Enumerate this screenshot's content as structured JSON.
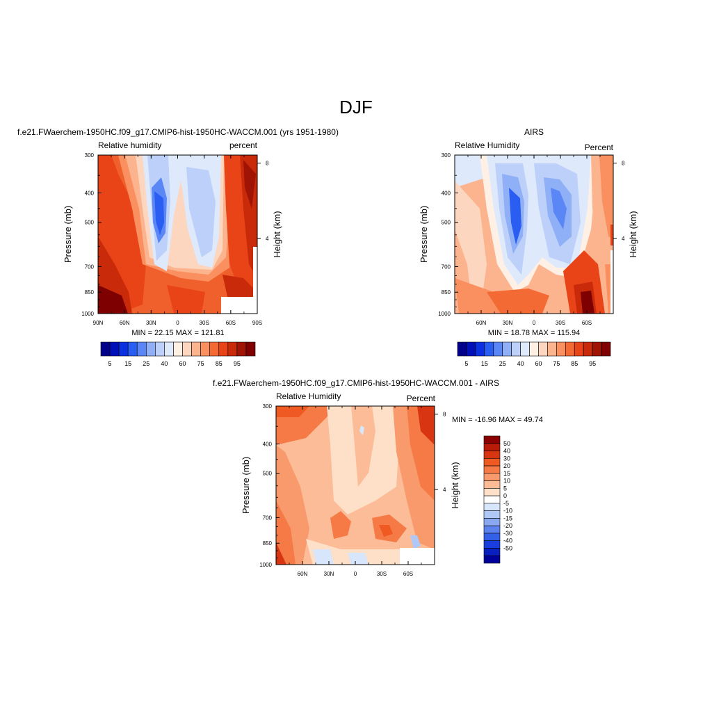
{
  "figure": {
    "title": "DJF"
  },
  "chart_data": [
    {
      "type": "heatmap",
      "title": "f.e21.FWaerchem-1950HC.f09_g17.CMIP6-hist-1950HC-WACCM.001 (yrs 1951-1980)",
      "left_label": "Relative humidity",
      "right_label": "percent",
      "ylabel": "Pressure (mb)",
      "y2label": "Height (km)",
      "y_ticks": [
        "300",
        "400",
        "500",
        "700",
        "850",
        "1000"
      ],
      "y2_ticks": [
        "8",
        "4"
      ],
      "x_ticks": [
        "90N",
        "60N",
        "30N",
        "0",
        "30S",
        "60S",
        "90S"
      ],
      "stats": "MIN =  22.15  MAX = 121.81",
      "colorbar_labels": [
        "5",
        "15",
        "25",
        "40",
        "60",
        "75",
        "85",
        "95"
      ],
      "colors": [
        "#00008b",
        "#0010b8",
        "#0a30e0",
        "#2a5ef2",
        "#5a87f5",
        "#8fb0f7",
        "#bcd0f9",
        "#deeafc",
        "#fff0e6",
        "#fdd6bf",
        "#fcb48f",
        "#fa905f",
        "#f46a35",
        "#e84418",
        "#c82a0a",
        "#a01405",
        "#7f0000"
      ],
      "ylim": [
        1000,
        300
      ],
      "x_range": [
        "90N",
        "90S"
      ]
    },
    {
      "type": "heatmap",
      "title": "AIRS",
      "left_label": "Relative Humidity",
      "right_label": "Percent",
      "ylabel": "Pressure (mb)",
      "y2label": "Height (km)",
      "y_ticks": [
        "300",
        "400",
        "500",
        "700",
        "850",
        "1000"
      ],
      "y2_ticks": [
        "8",
        "4"
      ],
      "x_ticks": [
        "60N",
        "30N",
        "0",
        "30S",
        "60S"
      ],
      "stats": "MIN =  18.78  MAX = 115.94",
      "colorbar_labels": [
        "5",
        "15",
        "25",
        "40",
        "60",
        "75",
        "85",
        "95"
      ],
      "ylim": [
        1000,
        300
      ]
    },
    {
      "type": "heatmap",
      "title": "f.e21.FWaerchem-1950HC.f09_g17.CMIP6-hist-1950HC-WACCM.001 - AIRS",
      "left_label": "Relative Humidity",
      "right_label": "Percent",
      "ylabel": "Pressure (mb)",
      "y2label": "Height (km)",
      "y_ticks": [
        "300",
        "400",
        "500",
        "700",
        "850",
        "1000"
      ],
      "y2_ticks": [
        "8",
        "4"
      ],
      "x_ticks": [
        "60N",
        "30N",
        "0",
        "30S",
        "60S"
      ],
      "stats": "MIN = -16.96  MAX =  49.74",
      "colorbar_labels": [
        "50",
        "40",
        "30",
        "20",
        "15",
        "10",
        "5",
        "0",
        "-5",
        "-10",
        "-15",
        "-20",
        "-30",
        "-40",
        "-50"
      ],
      "colors": [
        "#8b0000",
        "#b81c08",
        "#d83612",
        "#ee5a22",
        "#f57a45",
        "#f99a6c",
        "#fcbc98",
        "#fee0c8",
        "#ffffff",
        "#d8e6fb",
        "#b0c8f6",
        "#8aa8f2",
        "#5c82ee",
        "#3460e8",
        "#1a3ede",
        "#0820c0",
        "#00009a"
      ],
      "ylim": [
        1000,
        300
      ]
    }
  ]
}
